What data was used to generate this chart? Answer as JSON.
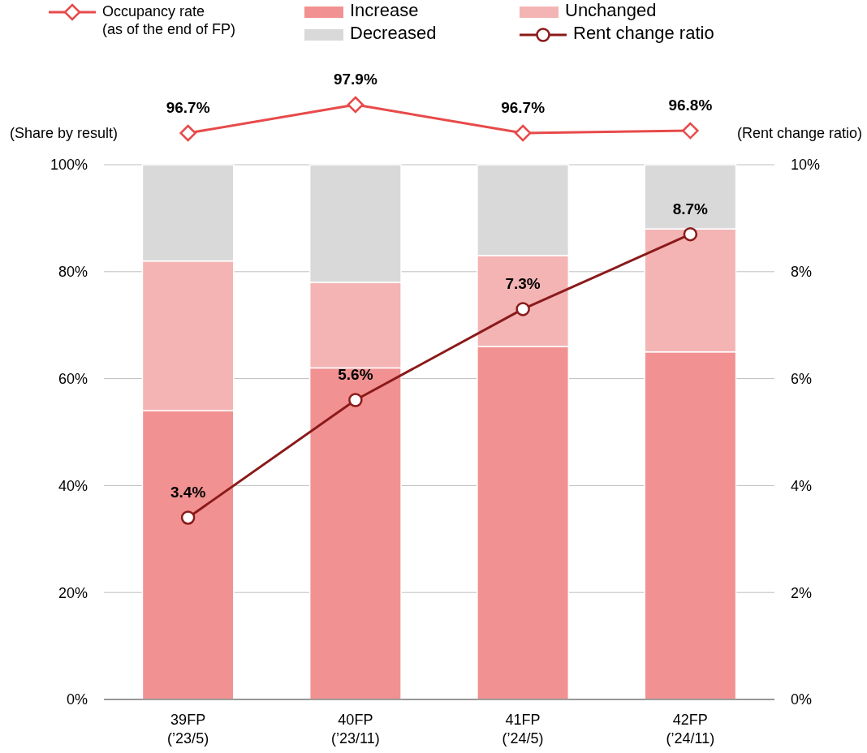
{
  "chart_data": [
    {
      "type": "line",
      "categories": [
        null,
        null,
        null,
        null
      ],
      "legend": "top left",
      "series": [
        {
          "name": "Occupancy rate\n(as of the end of FP)",
          "marker": "diamond",
          "color": "#e84a4a",
          "values": [
            96.7,
            97.9,
            96.7,
            96.8
          ],
          "value_labels": [
            "96.7%",
            "97.9%",
            "96.7%",
            "96.8%"
          ]
        }
      ]
    },
    {
      "type": "bar",
      "stacked": true,
      "categories": [
        "39FP\n(’23/5)",
        "40FP\n(’23/11)",
        "41FP\n(’24/5)",
        "42FP\n(’24/11)"
      ],
      "ylabel": "(Share by result)",
      "y2label": "(Rent change ratio)",
      "ylim": [
        0,
        100
      ],
      "yticks": [
        {
          "value": 0,
          "label": "0%"
        },
        {
          "value": 20,
          "label": "20%"
        },
        {
          "value": 40,
          "label": "40%"
        },
        {
          "value": 60,
          "label": "60%"
        },
        {
          "value": 80,
          "label": "80%"
        },
        {
          "value": 100,
          "label": "100%"
        }
      ],
      "y2lim": [
        0,
        10
      ],
      "y2ticks": [
        {
          "value": 0,
          "label": "0%"
        },
        {
          "value": 2,
          "label": "2%"
        },
        {
          "value": 4,
          "label": "4%"
        },
        {
          "value": 6,
          "label": "6%"
        },
        {
          "value": 8,
          "label": "8%"
        },
        {
          "value": 10,
          "label": "10%"
        }
      ],
      "grid": "y",
      "legend": "top",
      "series": [
        {
          "name": "Increase",
          "color": "#f29191",
          "values": [
            54,
            62,
            66,
            65
          ]
        },
        {
          "name": "Unchanged",
          "color": "#f4b4b4",
          "values": [
            28,
            16,
            17,
            23
          ]
        },
        {
          "name": "Decreased",
          "color": "#d9d9d9",
          "values": [
            18,
            22,
            17,
            12
          ]
        },
        {
          "name": "Rent change ratio",
          "type": "line",
          "axis": "y2",
          "marker": "circle",
          "color": "#8b1a1a",
          "values": [
            3.4,
            5.6,
            7.3,
            8.7
          ],
          "value_labels": [
            "3.4%",
            "5.6%",
            "7.3%",
            "8.7%"
          ]
        }
      ]
    }
  ]
}
